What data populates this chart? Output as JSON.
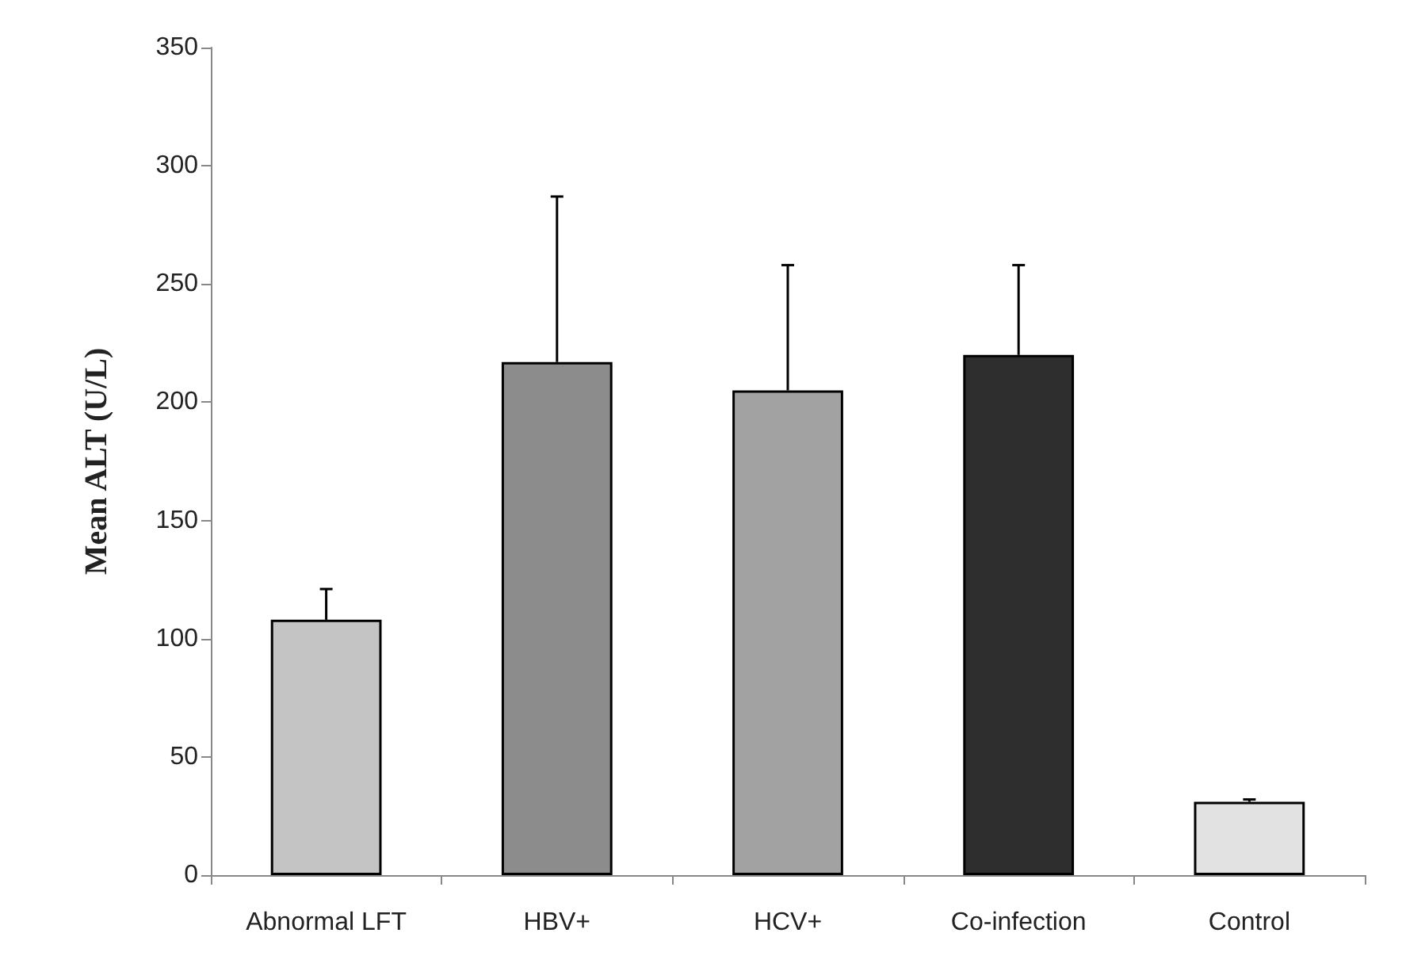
{
  "chart_data": {
    "type": "bar",
    "ylabel": "Mean ALT (U/L)",
    "categories": [
      "Abnormal LFT",
      "HBV+",
      "HCV+",
      "Co-infection",
      "Control"
    ],
    "values": [
      108,
      217,
      205,
      220,
      31
    ],
    "colors": [
      "#c4c4c4",
      "#8c8c8c",
      "#a2a2a2",
      "#2e2e2e",
      "#e2e2e2"
    ],
    "errors": [
      [
        108,
        121
      ],
      [
        217,
        287
      ],
      [
        205,
        258
      ],
      [
        220,
        258
      ],
      [
        31,
        32
      ]
    ],
    "ylim": [
      0,
      350
    ],
    "yticks": [
      0,
      50,
      100,
      150,
      200,
      250,
      300,
      350
    ],
    "grid": false
  }
}
